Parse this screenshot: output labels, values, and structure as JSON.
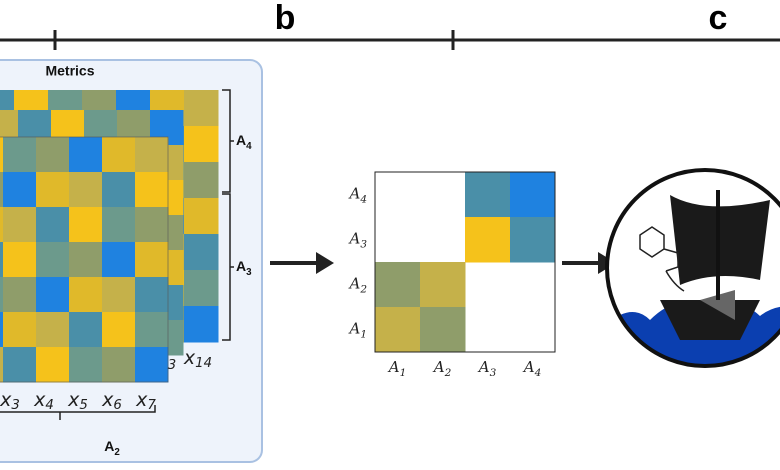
{
  "panel_labels": [
    "b",
    "c"
  ],
  "metrics_panel": {
    "title": "Metrics",
    "x_labels": [
      {
        "letter": "x",
        "sub": "3"
      },
      {
        "letter": "x",
        "sub": "4"
      },
      {
        "letter": "x",
        "sub": "5"
      },
      {
        "letter": "x",
        "sub": "6"
      },
      {
        "letter": "x",
        "sub": "7"
      }
    ],
    "back_x_labels": [
      {
        "letter": "",
        "sub": "3"
      },
      {
        "letter": "x",
        "sub": "14"
      }
    ],
    "brackets": [
      {
        "letter": "A",
        "sub": "4"
      },
      {
        "letter": "A",
        "sub": "3"
      },
      {
        "letter": "A",
        "sub": "2"
      }
    ]
  },
  "matrix": {
    "row_labels": [
      {
        "letter": "A",
        "sub": "4"
      },
      {
        "letter": "A",
        "sub": "3"
      },
      {
        "letter": "A",
        "sub": "2"
      },
      {
        "letter": "A",
        "sub": "1"
      }
    ],
    "col_labels": [
      {
        "letter": "A",
        "sub": "1"
      },
      {
        "letter": "A",
        "sub": "2"
      },
      {
        "letter": "A",
        "sub": "3"
      },
      {
        "letter": "A",
        "sub": "4"
      }
    ]
  }
}
